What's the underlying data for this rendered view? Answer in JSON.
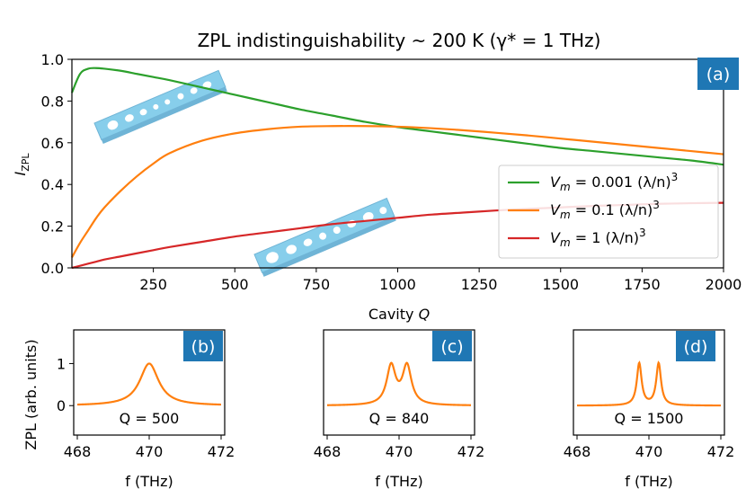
{
  "colors": {
    "green": "#2ca02c",
    "orange": "#ff7f0e",
    "red": "#d62728",
    "badge": "#1f77b4",
    "cavity": "#87ceeb"
  },
  "chart_data": [
    {
      "type": "line",
      "panel_label": "(a)",
      "title": "ZPL indistinguishability ~ 200 K (γ* = 1 THz)",
      "xlabel": "Cavity Q",
      "ylabel": "I_ZPL",
      "xlim": [
        0,
        2000
      ],
      "ylim": [
        0,
        1.0
      ],
      "xticks": [
        250,
        500,
        750,
        1000,
        1250,
        1500,
        1750,
        2000
      ],
      "yticks": [
        0.0,
        0.2,
        0.4,
        0.6,
        0.8,
        1.0
      ],
      "x": [
        0,
        25,
        50,
        75,
        100,
        150,
        200,
        250,
        300,
        400,
        500,
        600,
        700,
        800,
        900,
        1000,
        1100,
        1200,
        1300,
        1400,
        1500,
        1600,
        1700,
        1800,
        1900,
        2000
      ],
      "series": [
        {
          "name": "Vm = 0.001 (λ/n)³",
          "color_key": "green",
          "values": [
            0.84,
            0.93,
            0.955,
            0.958,
            0.955,
            0.945,
            0.93,
            0.915,
            0.9,
            0.865,
            0.83,
            0.795,
            0.76,
            0.73,
            0.7,
            0.675,
            0.655,
            0.635,
            0.615,
            0.595,
            0.575,
            0.56,
            0.545,
            0.53,
            0.515,
            0.495
          ]
        },
        {
          "name": "Vm = 0.1 (λ/n)³",
          "color_key": "orange",
          "values": [
            0.05,
            0.12,
            0.18,
            0.24,
            0.29,
            0.37,
            0.44,
            0.5,
            0.55,
            0.61,
            0.645,
            0.665,
            0.677,
            0.68,
            0.68,
            0.677,
            0.67,
            0.66,
            0.648,
            0.635,
            0.62,
            0.605,
            0.59,
            0.575,
            0.56,
            0.545
          ]
        },
        {
          "name": "Vm = 1 (λ/n)³",
          "color_key": "red",
          "values": [
            0.0,
            0.01,
            0.02,
            0.03,
            0.04,
            0.055,
            0.07,
            0.085,
            0.1,
            0.125,
            0.15,
            0.17,
            0.19,
            0.21,
            0.225,
            0.24,
            0.255,
            0.265,
            0.275,
            0.283,
            0.29,
            0.297,
            0.302,
            0.307,
            0.31,
            0.312
          ]
        }
      ],
      "legend": {
        "placement": "center-right",
        "entries": [
          {
            "prefix": "V",
            "sub": "m",
            "value": " = 0.001 (λ/n)",
            "sup": "3"
          },
          {
            "prefix": "V",
            "sub": "m",
            "value": " = 0.1 (λ/n)",
            "sup": "3"
          },
          {
            "prefix": "V",
            "sub": "m",
            "value": " = 1 (λ/n)",
            "sup": "3"
          }
        ]
      }
    },
    {
      "type": "line",
      "panel_label": "(b)",
      "annotation": "Q = 500",
      "xlabel": "f (THz)",
      "ylabel": "ZPL (arb. units)",
      "xlim": [
        467.9,
        472.1
      ],
      "ylim": [
        -0.7,
        1.8
      ],
      "xticks": [
        468,
        470,
        472
      ],
      "yticks": [
        0,
        1
      ],
      "peaks": [
        470.0
      ],
      "peak_width": 0.32,
      "peak_height": 1.0
    },
    {
      "type": "line",
      "panel_label": "(c)",
      "annotation": "Q = 840",
      "xlabel": "f (THz)",
      "xlim": [
        467.9,
        472.1
      ],
      "ylim": [
        -0.7,
        1.8
      ],
      "xticks": [
        468,
        470,
        472
      ],
      "yticks": [],
      "peaks": [
        469.78,
        470.22
      ],
      "peak_width": 0.15,
      "peak_height": 0.92
    },
    {
      "type": "line",
      "panel_label": "(d)",
      "annotation": "Q = 1500",
      "xlabel": "f (THz)",
      "xlim": [
        467.9,
        472.1
      ],
      "ylim": [
        -0.7,
        1.8
      ],
      "xticks": [
        468,
        470,
        472
      ],
      "yticks": [],
      "peaks": [
        469.73,
        470.27
      ],
      "peak_width": 0.08,
      "peak_height": 1.0
    }
  ]
}
